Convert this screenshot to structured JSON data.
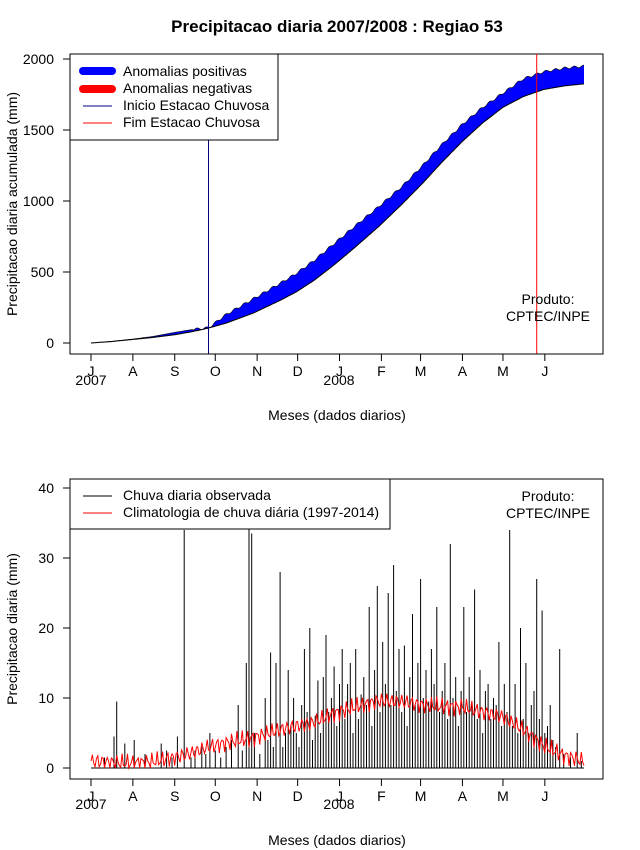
{
  "title": "Precipitacao diaria 2007/2008 : Regiao 53",
  "produto_line1": "Produto:",
  "produto_line2": "CPTEC/INPE",
  "xlabel": "Meses (dados diarios)",
  "month_ticks": [
    "J",
    "A",
    "S",
    "O",
    "N",
    "D",
    "J",
    "F",
    "M",
    "A",
    "M",
    "J"
  ],
  "year_labels": [
    "2007",
    "2008"
  ],
  "colors": {
    "positive": "#0000ff",
    "negative": "#ff0000",
    "start_line": "#000080",
    "end_line": "#ff0000",
    "observed": "#000000",
    "climatology": "#ff0000"
  },
  "chart_data": [
    {
      "type": "area",
      "ylabel": "Precipitacao diaria acumulada (mm)",
      "ylim": [
        0,
        2000
      ],
      "yticks": [
        0,
        500,
        1000,
        1500,
        2000
      ],
      "x_unit": "days since 2007-07-01",
      "xlim": [
        0,
        366
      ],
      "legend": [
        "Anomalias positivas",
        "Anomalias negativas",
        "Inicio Estacao Chuvosa",
        "Fim Estacao Chuvosa"
      ],
      "legend_position": "top-left",
      "rainy_season_start_day": 87,
      "rainy_season_end_day": 330,
      "days": [
        0,
        15,
        31,
        45,
        62,
        75,
        87,
        100,
        120,
        140,
        152,
        165,
        180,
        195,
        213,
        230,
        245,
        260,
        275,
        290,
        305,
        320,
        335,
        350,
        365
      ],
      "climatology_cum": [
        0,
        10,
        25,
        38,
        58,
        80,
        105,
        140,
        210,
        300,
        360,
        440,
        550,
        670,
        820,
        975,
        1120,
        1275,
        1420,
        1550,
        1660,
        1735,
        1785,
        1810,
        1825
      ],
      "observed_cum": [
        0,
        12,
        28,
        45,
        75,
        95,
        108,
        200,
        310,
        420,
        490,
        580,
        700,
        820,
        960,
        1100,
        1245,
        1400,
        1540,
        1660,
        1760,
        1860,
        1910,
        1935,
        1950
      ]
    },
    {
      "type": "bar",
      "ylabel": "Precipitacao diaria (mm)",
      "ylim": [
        0,
        40
      ],
      "yticks": [
        0,
        10,
        20,
        30,
        40
      ],
      "x_unit": "days since 2007-07-01",
      "xlim": [
        0,
        366
      ],
      "legend": [
        "Chuva diaria observada",
        "Climatologia de chuva diária (1997-2014)"
      ],
      "legend_position": "top-left",
      "peaks": [
        [
          10,
          1.5
        ],
        [
          17,
          4.5
        ],
        [
          19,
          9.5
        ],
        [
          25,
          3.5
        ],
        [
          32,
          4.0
        ],
        [
          40,
          2.0
        ],
        [
          52,
          3.5
        ],
        [
          56,
          2.5
        ],
        [
          60,
          1.5
        ],
        [
          64,
          4.5
        ],
        [
          69,
          34.0
        ],
        [
          74,
          1.5
        ],
        [
          77,
          2.5
        ],
        [
          82,
          3.0
        ],
        [
          85,
          2.0
        ],
        [
          88,
          5.0
        ],
        [
          92,
          2.5
        ],
        [
          96,
          1.5
        ],
        [
          100,
          3.0
        ],
        [
          104,
          4.0
        ],
        [
          109,
          9.0
        ],
        [
          112,
          2.5
        ],
        [
          115,
          15.0
        ],
        [
          117,
          35.0
        ],
        [
          119,
          33.5
        ],
        [
          121,
          5.0
        ],
        [
          125,
          2.0
        ],
        [
          129,
          10.0
        ],
        [
          131,
          4.0
        ],
        [
          133,
          16.5
        ],
        [
          135,
          3.0
        ],
        [
          137,
          15.0
        ],
        [
          140,
          28.0
        ],
        [
          142,
          3.0
        ],
        [
          144,
          5.0
        ],
        [
          146,
          14.0
        ],
        [
          148,
          6.0
        ],
        [
          150,
          10.0
        ],
        [
          152,
          5.0
        ],
        [
          154,
          3.0
        ],
        [
          156,
          9.0
        ],
        [
          158,
          17.0
        ],
        [
          160,
          8.0
        ],
        [
          162,
          20.0
        ],
        [
          164,
          4.0
        ],
        [
          166,
          7.5
        ],
        [
          168,
          12.5
        ],
        [
          170,
          5.0
        ],
        [
          172,
          13.0
        ],
        [
          174,
          19.0
        ],
        [
          176,
          8.0
        ],
        [
          178,
          10.0
        ],
        [
          180,
          14.5
        ],
        [
          182,
          6.0
        ],
        [
          184,
          12.0
        ],
        [
          186,
          17.0
        ],
        [
          188,
          7.0
        ],
        [
          190,
          12.0
        ],
        [
          192,
          15.0
        ],
        [
          194,
          5.0
        ],
        [
          196,
          17.0
        ],
        [
          198,
          7.0
        ],
        [
          200,
          10.5
        ],
        [
          202,
          13.0
        ],
        [
          204,
          9.0
        ],
        [
          206,
          23.0
        ],
        [
          208,
          6.0
        ],
        [
          210,
          14.0
        ],
        [
          212,
          26.0
        ],
        [
          214,
          8.0
        ],
        [
          216,
          18.0
        ],
        [
          218,
          12.0
        ],
        [
          220,
          25.0
        ],
        [
          222,
          9.0
        ],
        [
          224,
          29.0
        ],
        [
          226,
          11.0
        ],
        [
          228,
          17.0
        ],
        [
          230,
          8.0
        ],
        [
          232,
          17.5
        ],
        [
          234,
          6.0
        ],
        [
          236,
          13.0
        ],
        [
          238,
          22.0
        ],
        [
          240,
          9.0
        ],
        [
          242,
          15.0
        ],
        [
          244,
          27.0
        ],
        [
          246,
          10.0
        ],
        [
          248,
          14.0
        ],
        [
          250,
          9.5
        ],
        [
          252,
          17.0
        ],
        [
          254,
          12.0
        ],
        [
          256,
          23.0
        ],
        [
          258,
          8.0
        ],
        [
          260,
          11.0
        ],
        [
          262,
          15.0
        ],
        [
          264,
          7.0
        ],
        [
          266,
          32.0
        ],
        [
          268,
          10.0
        ],
        [
          270,
          13.0
        ],
        [
          272,
          6.0
        ],
        [
          274,
          11.0
        ],
        [
          276,
          23.0
        ],
        [
          278,
          8.0
        ],
        [
          280,
          13.0
        ],
        [
          282,
          9.0
        ],
        [
          284,
          25.5
        ],
        [
          286,
          7.0
        ],
        [
          288,
          14.0
        ],
        [
          290,
          5.0
        ],
        [
          292,
          11.0
        ],
        [
          294,
          12.0
        ],
        [
          296,
          7.0
        ],
        [
          298,
          10.0
        ],
        [
          300,
          9.0
        ],
        [
          302,
          18.0
        ],
        [
          304,
          6.0
        ],
        [
          306,
          12.0
        ],
        [
          308,
          8.0
        ],
        [
          310,
          34.0
        ],
        [
          312,
          6.0
        ],
        [
          314,
          12.0
        ],
        [
          316,
          5.0
        ],
        [
          318,
          20.0
        ],
        [
          320,
          7.0
        ],
        [
          322,
          15.0
        ],
        [
          324,
          5.0
        ],
        [
          326,
          9.0
        ],
        [
          328,
          11.0
        ],
        [
          330,
          27.0
        ],
        [
          332,
          7.0
        ],
        [
          334,
          22.5
        ],
        [
          336,
          5.0
        ],
        [
          338,
          6.0
        ],
        [
          340,
          9.0
        ],
        [
          342,
          4.0
        ],
        [
          344,
          3.0
        ],
        [
          347,
          17.0
        ],
        [
          350,
          2.0
        ],
        [
          355,
          1.5
        ],
        [
          360,
          5.0
        ],
        [
          363,
          1.0
        ]
      ],
      "climatology_days": [
        0,
        15,
        31,
        45,
        62,
        75,
        87,
        100,
        120,
        140,
        152,
        165,
        180,
        195,
        213,
        230,
        245,
        260,
        275,
        290,
        305,
        320,
        335,
        350,
        365
      ],
      "climatology_mm": [
        1.0,
        0.8,
        0.7,
        0.9,
        1.5,
        2.2,
        3.0,
        3.6,
        4.3,
        5.5,
        6.0,
        6.5,
        7.8,
        8.7,
        9.6,
        9.5,
        9.0,
        8.8,
        8.7,
        8.0,
        7.3,
        5.5,
        3.2,
        1.8,
        1.0
      ]
    }
  ]
}
